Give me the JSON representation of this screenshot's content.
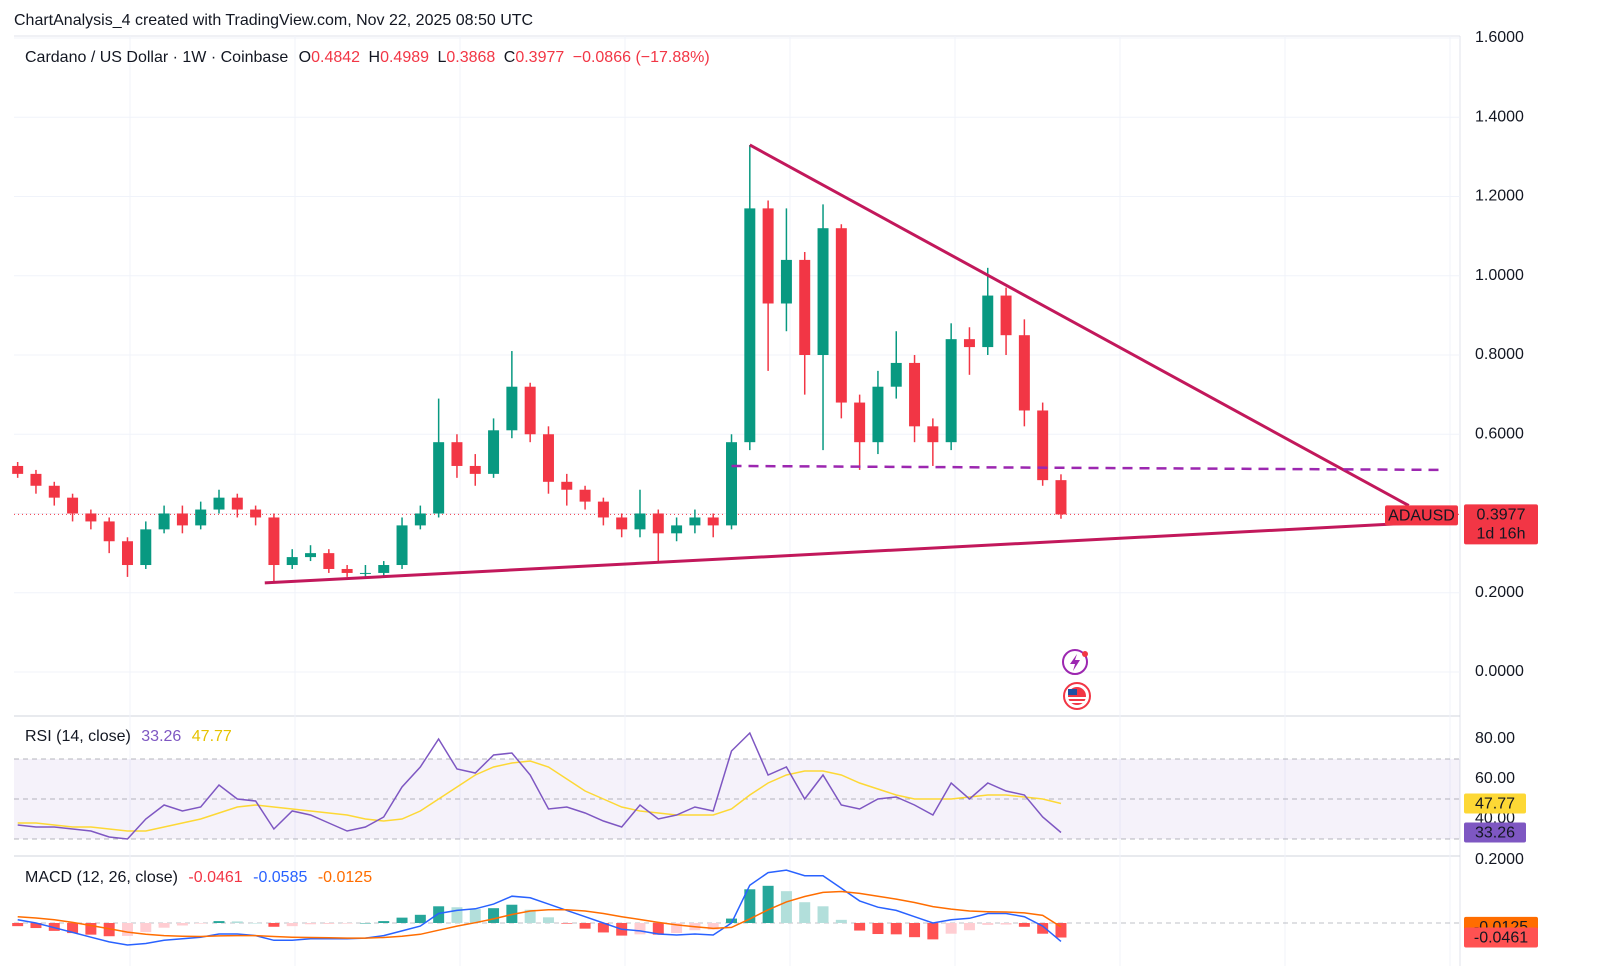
{
  "header": {
    "title": "ChartAnalysis_4 created with TradingView.com, Nov 22, 2025 08:50 UTC"
  },
  "chart_data": [
    {
      "type": "candlestick",
      "title": "Cardano / US Dollar · 1W · Coinbase",
      "ohlc_labels": [
        "O",
        "H",
        "L",
        "C"
      ],
      "change": "−0.0866 (−17.88%)",
      "ticker": "ADAUSD",
      "countdown": "1d 16h",
      "up_color": "#089981",
      "down_color": "#f23645",
      "open": [
        0.52,
        0.5,
        0.47,
        0.44,
        0.4,
        0.38,
        0.33,
        0.27,
        0.36,
        0.4,
        0.37,
        0.41,
        0.44,
        0.41,
        0.39,
        0.27,
        0.29,
        0.3,
        0.26,
        0.25,
        0.25,
        0.27,
        0.37,
        0.4,
        0.58,
        0.52,
        0.5,
        0.61,
        0.72,
        0.6,
        0.48,
        0.46,
        0.43,
        0.39,
        0.36,
        0.4,
        0.35,
        0.37,
        0.39,
        0.37,
        0.58,
        1.17,
        0.93,
        1.04,
        0.8,
        1.12,
        0.68,
        0.58,
        0.72,
        0.78,
        0.62,
        0.58,
        0.84,
        0.82,
        0.95,
        0.85,
        0.66,
        0.4842
      ],
      "high": [
        0.53,
        0.51,
        0.48,
        0.45,
        0.41,
        0.39,
        0.34,
        0.38,
        0.42,
        0.42,
        0.43,
        0.46,
        0.45,
        0.42,
        0.4,
        0.31,
        0.32,
        0.31,
        0.27,
        0.27,
        0.28,
        0.39,
        0.42,
        0.69,
        0.6,
        0.55,
        0.64,
        0.81,
        0.73,
        0.62,
        0.5,
        0.47,
        0.44,
        0.4,
        0.46,
        0.41,
        0.39,
        0.41,
        0.4,
        0.6,
        1.33,
        1.19,
        1.17,
        1.06,
        1.18,
        1.13,
        0.7,
        0.76,
        0.86,
        0.8,
        0.64,
        0.88,
        0.87,
        1.02,
        0.97,
        0.89,
        0.68,
        0.4989
      ],
      "low": [
        0.49,
        0.45,
        0.42,
        0.38,
        0.36,
        0.3,
        0.24,
        0.26,
        0.35,
        0.35,
        0.36,
        0.4,
        0.39,
        0.37,
        0.225,
        0.26,
        0.28,
        0.25,
        0.24,
        0.24,
        0.24,
        0.26,
        0.36,
        0.39,
        0.49,
        0.47,
        0.49,
        0.59,
        0.58,
        0.45,
        0.42,
        0.41,
        0.37,
        0.34,
        0.34,
        0.28,
        0.33,
        0.35,
        0.34,
        0.36,
        0.56,
        0.76,
        0.86,
        0.7,
        0.56,
        0.64,
        0.51,
        0.55,
        0.69,
        0.58,
        0.52,
        0.56,
        0.75,
        0.8,
        0.8,
        0.62,
        0.47,
        0.3868
      ],
      "close": [
        0.5,
        0.47,
        0.44,
        0.4,
        0.38,
        0.33,
        0.27,
        0.36,
        0.4,
        0.37,
        0.41,
        0.44,
        0.41,
        0.39,
        0.27,
        0.29,
        0.3,
        0.26,
        0.25,
        0.25,
        0.27,
        0.37,
        0.4,
        0.58,
        0.52,
        0.5,
        0.61,
        0.72,
        0.6,
        0.48,
        0.46,
        0.43,
        0.39,
        0.36,
        0.4,
        0.35,
        0.37,
        0.39,
        0.37,
        0.58,
        1.17,
        0.93,
        1.04,
        0.8,
        1.12,
        0.68,
        0.58,
        0.72,
        0.78,
        0.62,
        0.58,
        0.84,
        0.82,
        0.95,
        0.85,
        0.66,
        0.4842,
        0.3977
      ],
      "xlim": [
        -0.2,
        78.8
      ],
      "ylim": [
        -0.1085,
        1.6202
      ],
      "yticks": [
        {
          "value": 0,
          "label": "0.0000"
        },
        {
          "value": 0.2,
          "label": "0.2000"
        },
        {
          "value": 0.4,
          "label": "0.4000"
        },
        {
          "value": 0.6,
          "label": "0.6000"
        },
        {
          "value": 0.8,
          "label": "0.8000"
        },
        {
          "value": 1.0,
          "label": "1.0000"
        },
        {
          "value": 1.2,
          "label": "1.2000"
        },
        {
          "value": 1.4,
          "label": "1.4000"
        },
        {
          "value": 1.6,
          "label": "1.6000"
        }
      ],
      "grid": true,
      "trendlines": [
        {
          "from": [
            40,
            1.33
          ],
          "to": [
            76,
            0.42
          ],
          "color": "#c2185b",
          "dashed": false
        },
        {
          "from": [
            13.5,
            0.225
          ],
          "to": [
            77.9,
            0.38
          ],
          "color": "#c2185b",
          "dashed": false
        },
        {
          "from": [
            39,
            0.52
          ],
          "to": [
            78,
            0.51
          ],
          "color": "#9c27b0",
          "dashed": true
        }
      ]
    },
    {
      "type": "rsi",
      "title": "RSI (14, close)",
      "values": [
        37,
        36,
        36,
        35,
        34,
        31,
        30,
        40,
        47,
        44,
        46,
        57,
        50,
        49,
        35,
        44,
        42,
        38,
        34,
        36,
        41,
        56,
        66,
        80,
        65,
        63,
        72,
        73,
        62,
        45,
        46,
        43,
        39,
        36,
        47,
        40,
        42,
        46,
        44,
        74,
        83,
        62,
        66,
        50,
        62,
        47,
        45,
        50,
        51,
        47,
        42,
        58,
        50,
        58,
        54,
        52,
        41,
        33.26
      ],
      "ma": [
        38,
        38,
        37,
        36,
        36,
        35,
        34,
        34,
        36,
        38,
        40,
        43,
        46,
        47,
        46,
        45,
        44,
        43,
        42,
        40,
        39,
        40,
        44,
        50,
        56,
        62,
        66,
        68,
        69,
        66,
        60,
        54,
        50,
        46,
        44,
        43,
        42,
        42,
        42,
        45,
        52,
        58,
        62,
        64,
        64,
        62,
        58,
        55,
        52,
        50,
        50,
        50,
        51,
        52,
        52,
        51,
        50,
        47.77
      ],
      "color": "#7e57c2",
      "ma_color": "#fdd835",
      "ylim": [
        22,
        90.5
      ],
      "yticks": [
        {
          "value": 40,
          "label": "40.00"
        },
        {
          "value": 60,
          "label": "60.00"
        },
        {
          "value": 80,
          "label": "80.00"
        }
      ],
      "bands": [
        70,
        50,
        30
      ]
    },
    {
      "type": "macd",
      "title": "MACD (12, 26, close)",
      "macd": [
        0.01,
        0.0,
        -0.015,
        -0.03,
        -0.045,
        -0.06,
        -0.07,
        -0.065,
        -0.055,
        -0.05,
        -0.045,
        -0.035,
        -0.035,
        -0.04,
        -0.055,
        -0.055,
        -0.05,
        -0.05,
        -0.05,
        -0.048,
        -0.04,
        -0.025,
        -0.01,
        0.03,
        0.04,
        0.045,
        0.06,
        0.085,
        0.08,
        0.06,
        0.04,
        0.02,
        0.0,
        -0.02,
        -0.025,
        -0.035,
        -0.038,
        -0.035,
        -0.038,
        0.0,
        0.12,
        0.16,
        0.168,
        0.15,
        0.15,
        0.11,
        0.07,
        0.05,
        0.04,
        0.02,
        0.0,
        0.01,
        0.015,
        0.03,
        0.03,
        0.02,
        -0.01,
        -0.0585
      ],
      "signal": [
        0.02,
        0.016,
        0.01,
        0.002,
        -0.008,
        -0.018,
        -0.029,
        -0.036,
        -0.04,
        -0.042,
        -0.043,
        -0.041,
        -0.04,
        -0.04,
        -0.043,
        -0.045,
        -0.046,
        -0.047,
        -0.048,
        -0.048,
        -0.046,
        -0.042,
        -0.036,
        -0.023,
        -0.01,
        0.001,
        0.013,
        0.027,
        0.038,
        0.042,
        0.042,
        0.038,
        0.03,
        0.02,
        0.011,
        0.002,
        -0.006,
        -0.012,
        -0.017,
        -0.014,
        0.013,
        0.042,
        0.067,
        0.084,
        0.097,
        0.1,
        0.094,
        0.085,
        0.076,
        0.065,
        0.052,
        0.044,
        0.038,
        0.036,
        0.035,
        0.032,
        0.024,
        -0.0125
      ],
      "histogram": [
        -0.01,
        -0.016,
        -0.025,
        -0.032,
        -0.037,
        -0.042,
        -0.041,
        -0.029,
        -0.015,
        -0.008,
        -0.002,
        0.006,
        0.005,
        0.0,
        -0.012,
        -0.01,
        -0.004,
        -0.003,
        -0.002,
        0.0,
        0.006,
        0.017,
        0.026,
        0.053,
        0.05,
        0.044,
        0.047,
        0.058,
        0.042,
        0.018,
        -0.002,
        -0.018,
        -0.03,
        -0.04,
        -0.036,
        -0.037,
        -0.032,
        -0.023,
        -0.021,
        0.014,
        0.107,
        0.118,
        0.101,
        0.066,
        0.053,
        0.01,
        -0.024,
        -0.035,
        -0.036,
        -0.045,
        -0.052,
        -0.034,
        -0.023,
        -0.006,
        -0.005,
        -0.012,
        -0.034,
        -0.0461
      ],
      "macd_color": "#2962ff",
      "signal_color": "#ff6d00",
      "hist_colors": [
        "#26a69a",
        "#b2dfdb",
        "#ff5252",
        "#ffcdd2"
      ],
      "ylim": [
        -0.1365,
        0.2063
      ],
      "yticks": [
        {
          "value": 0.2,
          "label": "0.2000"
        }
      ]
    }
  ]
}
